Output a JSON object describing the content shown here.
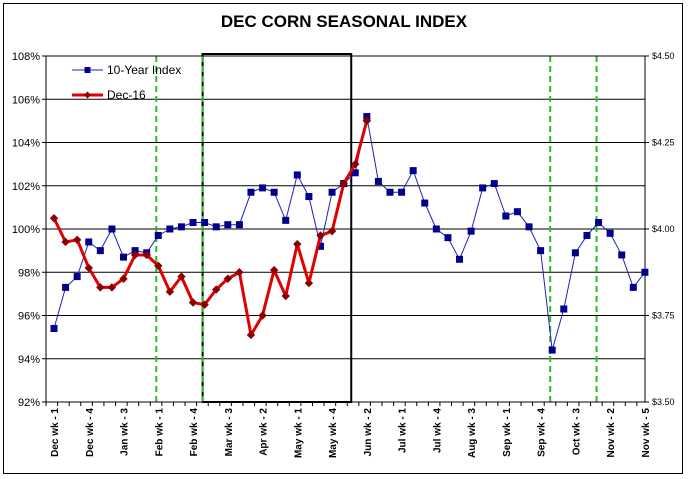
{
  "chart_data": {
    "type": "line",
    "title": "DEC CORN SEASONAL INDEX",
    "xlabel": "",
    "ylabel": "",
    "y_left": {
      "ticks": [
        "92%",
        "94%",
        "96%",
        "98%",
        "100%",
        "102%",
        "104%",
        "106%",
        "108%"
      ],
      "range": [
        92,
        108
      ]
    },
    "y_right": {
      "ticks": [
        "$3.50",
        "$3.75",
        "$4.00",
        "$4.25",
        "$4.50"
      ],
      "range": [
        3.5,
        4.5
      ]
    },
    "x_ticks": [
      "Dec wk - 1",
      "Dec wk - 4",
      "Jan wk - 3",
      "Feb wk - 1",
      "Feb wk - 4",
      "Mar wk - 3",
      "Apr wk - 2",
      "May wk - 1",
      "May wk - 4",
      "Jun wk - 2",
      "Jul wk - 1",
      "Jul wk - 4",
      "Aug wk - 3",
      "Sep wk - 1",
      "Sep wk - 4",
      "Oct wk - 3",
      "Nov wk - 2",
      "Nov wk - 5"
    ],
    "legend_position": "top-left",
    "grid": "horizontal",
    "series": [
      {
        "name": "10-Year Index",
        "color": "#1f1fbf",
        "marker": "square",
        "axis": "left",
        "values": [
          95.4,
          97.3,
          97.8,
          99.4,
          99.0,
          100.0,
          98.7,
          99.0,
          98.9,
          99.7,
          100.0,
          100.1,
          100.3,
          100.3,
          100.1,
          100.2,
          100.2,
          101.7,
          101.9,
          101.7,
          100.4,
          102.5,
          101.5,
          99.2,
          101.7,
          102.1,
          102.6,
          105.2,
          102.2,
          101.7,
          101.7,
          102.7,
          101.2,
          100.0,
          99.6,
          98.6,
          99.9,
          101.9,
          102.1,
          100.6,
          100.8,
          100.1,
          99.0,
          94.4,
          96.3,
          98.9,
          99.7,
          100.3,
          99.8,
          98.8,
          97.3,
          98.0
        ]
      },
      {
        "name": "Dec-16",
        "color": "#e00000",
        "marker": "diamond",
        "axis": "left",
        "values": [
          100.5,
          99.4,
          99.5,
          98.2,
          97.3,
          97.3,
          97.7,
          98.8,
          98.8,
          98.3,
          97.1,
          97.8,
          96.6,
          96.5,
          97.2,
          97.7,
          98.0,
          95.1,
          96.0,
          98.1,
          96.9,
          99.3,
          97.5,
          99.7,
          99.9,
          102.1,
          103.0,
          105.0
        ]
      }
    ],
    "vertical_markers": {
      "dashed_green_at_index": [
        9,
        13,
        43,
        47
      ],
      "highlight_box_index_range": [
        13,
        26
      ]
    }
  }
}
